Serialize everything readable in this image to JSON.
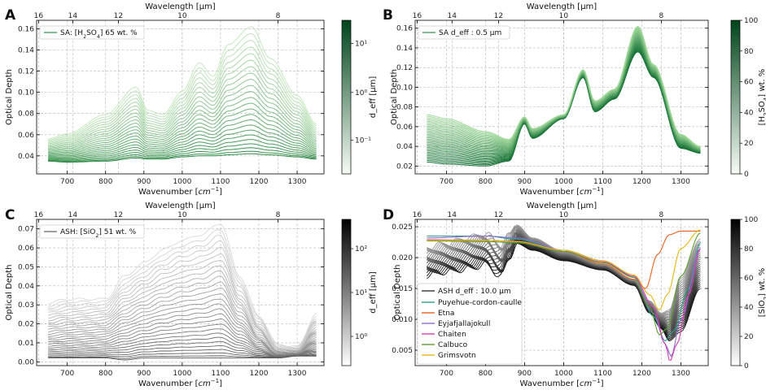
{
  "figure": {
    "description_labels": [
      "A",
      "B",
      "C",
      "D"
    ]
  },
  "chart_data": [
    {
      "panel": "A",
      "type": "line",
      "xlabel": "Wavenumber [cm⁻¹]",
      "ylabel": "Optical Depth",
      "top_xlabel": "Wavelength [μm]",
      "xlim": [
        620,
        1370
      ],
      "ylim": [
        0.023,
        0.168
      ],
      "xticks": [
        700,
        800,
        900,
        1000,
        1100,
        1200,
        1300
      ],
      "yticks": [
        0.04,
        0.06,
        0.08,
        0.1,
        0.12,
        0.14,
        0.16
      ],
      "yticklabels": [
        "0.04",
        "0.06",
        "0.08",
        "0.10",
        "0.12",
        "0.14",
        "0.16"
      ],
      "top_ticks": [
        16,
        14,
        12,
        10,
        8
      ],
      "legend": "SA: [H₂SO₄] 65 wt. %",
      "colorbar": {
        "label": "d_eff [μm]",
        "colors": [
          "#f7fcf5",
          "#00441b"
        ],
        "scale": "log",
        "ticks": [
          "10⁻¹",
          "10⁰",
          "10¹"
        ],
        "tick_fracs": [
          0.22,
          0.53,
          0.85
        ]
      },
      "series_count": 24,
      "key_points": {
        "x": [
          650,
          700,
          800,
          880,
          910,
          950,
          1000,
          1045,
          1080,
          1120,
          1180,
          1230,
          1300,
          1350
        ],
        "y_max": [
          0.056,
          0.061,
          0.079,
          0.105,
          0.083,
          0.079,
          0.101,
          0.128,
          0.115,
          0.145,
          0.162,
          0.132,
          0.097,
          0.07
        ],
        "y_min": [
          0.035,
          0.034,
          0.035,
          0.038,
          0.037,
          0.037,
          0.039,
          0.04,
          0.04,
          0.041,
          0.042,
          0.041,
          0.039,
          0.037
        ]
      }
    },
    {
      "panel": "B",
      "type": "line",
      "xlabel": "Wavenumber [cm⁻¹]",
      "ylabel": "Optical Depth",
      "top_xlabel": "Wavelength [μm]",
      "xlim": [
        620,
        1370
      ],
      "ylim": [
        0.012,
        0.168
      ],
      "xticks": [
        700,
        800,
        900,
        1000,
        1100,
        1200,
        1300
      ],
      "yticks": [
        0.02,
        0.04,
        0.06,
        0.08,
        0.1,
        0.12,
        0.14,
        0.16
      ],
      "yticklabels": [
        "0.02",
        "0.04",
        "0.06",
        "0.08",
        "0.10",
        "0.12",
        "0.14",
        "0.16"
      ],
      "top_ticks": [
        16,
        14,
        12,
        10,
        8
      ],
      "legend": "SA d_eff : 0.5 μm",
      "colorbar": {
        "label": "[H₂SO₄] wt. %",
        "colors": [
          "#f7fcf5",
          "#00441b"
        ],
        "scale": "linear",
        "ticks": [
          "0",
          "20",
          "40",
          "60",
          "80",
          "100"
        ],
        "tick_fracs": [
          0,
          0.2,
          0.4,
          0.6,
          0.8,
          1.0
        ]
      },
      "series_count": 30,
      "key_points": {
        "x": [
          650,
          700,
          800,
          860,
          900,
          920,
          1000,
          1050,
          1080,
          1130,
          1190,
          1230,
          1300,
          1350
        ],
        "y_top": [
          0.072,
          0.068,
          0.055,
          0.047,
          0.07,
          0.058,
          0.072,
          0.118,
          0.086,
          0.098,
          0.162,
          0.123,
          0.052,
          0.04
        ],
        "y_bot": [
          0.024,
          0.022,
          0.02,
          0.025,
          0.063,
          0.048,
          0.068,
          0.11,
          0.075,
          0.088,
          0.136,
          0.11,
          0.038,
          0.033
        ]
      }
    },
    {
      "panel": "C",
      "type": "line",
      "xlabel": "Wavenumber [cm⁻¹]",
      "ylabel": "Optical Depth",
      "top_xlabel": "Wavelength [μm]",
      "xlim": [
        620,
        1370
      ],
      "ylim": [
        -0.002,
        0.075
      ],
      "xticks": [
        700,
        800,
        900,
        1000,
        1100,
        1200,
        1300
      ],
      "yticks": [
        0.0,
        0.01,
        0.02,
        0.03,
        0.04,
        0.05,
        0.06,
        0.07
      ],
      "yticklabels": [
        "0.00",
        "0.01",
        "0.02",
        "0.03",
        "0.04",
        "0.05",
        "0.06",
        "0.07"
      ],
      "top_ticks": [
        16,
        14,
        12,
        10,
        8
      ],
      "legend": "ASH: [SiO₂] 51 wt. %",
      "colorbar": {
        "label": "d_eff [μm]",
        "colors": [
          "#ffffff",
          "#000000"
        ],
        "scale": "log",
        "ticks": [
          "10⁰",
          "10¹",
          "10²"
        ],
        "tick_fracs": [
          0.2,
          0.5,
          0.8
        ]
      },
      "series_count": 28,
      "key_points": {
        "x": [
          650,
          700,
          800,
          850,
          900,
          950,
          1000,
          1050,
          1100,
          1150,
          1200,
          1250,
          1300,
          1350
        ],
        "y_max": [
          0.031,
          0.033,
          0.033,
          0.045,
          0.052,
          0.059,
          0.064,
          0.067,
          0.073,
          0.045,
          0.024,
          0.009,
          0.008,
          0.025
        ],
        "y_min": [
          0.002,
          0.002,
          0.002,
          0.001,
          0.002,
          0.002,
          0.002,
          0.002,
          0.002,
          0.002,
          0.002,
          0.002,
          0.003,
          0.003
        ]
      }
    },
    {
      "panel": "D",
      "type": "line",
      "xlabel": "Wavenumber [cm⁻¹]",
      "ylabel": "Optical Depth",
      "top_xlabel": "Wavelength [μm]",
      "xlim": [
        620,
        1370
      ],
      "ylim": [
        0.0025,
        0.0262
      ],
      "xticks": [
        700,
        800,
        900,
        1000,
        1100,
        1200,
        1300
      ],
      "yticks": [
        0.005,
        0.01,
        0.015,
        0.02,
        0.025
      ],
      "yticklabels": [
        "0.005",
        "0.010",
        "0.015",
        "0.020",
        "0.025"
      ],
      "top_ticks": [
        16,
        14,
        12,
        10,
        8
      ],
      "legend_title": "ASH d_eff : 10.0 μm",
      "colorbar": {
        "label": "[SiO₂] wt. %",
        "colors": [
          "#ffffff",
          "#000000"
        ],
        "scale": "linear",
        "ticks": [
          "0",
          "20",
          "40",
          "60",
          "80",
          "100"
        ],
        "tick_fracs": [
          0,
          0.2,
          0.4,
          0.6,
          0.8,
          1.0
        ]
      },
      "ash_band": {
        "x": [
          650,
          700,
          760,
          800,
          840,
          860,
          880,
          920,
          1000,
          1100,
          1180,
          1220,
          1250,
          1270,
          1300,
          1350
        ],
        "y_top": [
          0.0215,
          0.0222,
          0.0232,
          0.0238,
          0.022,
          0.0235,
          0.0253,
          0.0232,
          0.021,
          0.019,
          0.0165,
          0.013,
          0.011,
          0.0115,
          0.017,
          0.023
        ],
        "y_bot": [
          0.0172,
          0.0178,
          0.0183,
          0.019,
          0.017,
          0.02,
          0.0223,
          0.0212,
          0.0195,
          0.018,
          0.0155,
          0.011,
          0.0085,
          0.0065,
          0.008,
          0.015
        ]
      },
      "series": [
        {
          "name": "Puyehue-cordon-caulle",
          "color": "#2ca089",
          "x": [
            650,
            800,
            880,
            1000,
            1100,
            1180,
            1230,
            1260,
            1280,
            1320,
            1350
          ],
          "y": [
            0.0235,
            0.0235,
            0.023,
            0.0212,
            0.0195,
            0.017,
            0.0105,
            0.0065,
            0.008,
            0.015,
            0.0225
          ]
        },
        {
          "name": "Etna",
          "color": "#e8601c",
          "x": [
            650,
            800,
            880,
            1000,
            1100,
            1180,
            1210,
            1240,
            1270,
            1300,
            1350
          ],
          "y": [
            0.0228,
            0.0228,
            0.0226,
            0.021,
            0.019,
            0.0165,
            0.015,
            0.0205,
            0.0237,
            0.0243,
            0.0243
          ]
        },
        {
          "name": "Eyjafjallajokull",
          "color": "#8b6fd1",
          "x": [
            650,
            800,
            880,
            1000,
            1100,
            1180,
            1230,
            1260,
            1275,
            1300,
            1350
          ],
          "y": [
            0.0232,
            0.0235,
            0.0232,
            0.0212,
            0.0195,
            0.0168,
            0.011,
            0.006,
            0.004,
            0.01,
            0.0215
          ]
        },
        {
          "name": "Chaiten",
          "color": "#d63fb3",
          "x": [
            650,
            800,
            880,
            1000,
            1100,
            1180,
            1230,
            1260,
            1272,
            1290,
            1320,
            1350
          ],
          "y": [
            0.0229,
            0.0228,
            0.0226,
            0.021,
            0.0193,
            0.017,
            0.012,
            0.006,
            0.0032,
            0.006,
            0.014,
            0.0215
          ]
        },
        {
          "name": "Calbuco",
          "color": "#5aa02c",
          "x": [
            650,
            800,
            880,
            1000,
            1100,
            1180,
            1220,
            1245,
            1265,
            1300,
            1350
          ],
          "y": [
            0.0227,
            0.0226,
            0.0224,
            0.021,
            0.0192,
            0.0168,
            0.012,
            0.0075,
            0.0085,
            0.017,
            0.024
          ]
        },
        {
          "name": "Grimsvotn",
          "color": "#e8b60e",
          "x": [
            650,
            800,
            880,
            1000,
            1100,
            1180,
            1220,
            1245,
            1265,
            1300,
            1350
          ],
          "y": [
            0.0228,
            0.0228,
            0.0226,
            0.0212,
            0.0195,
            0.0172,
            0.014,
            0.0115,
            0.014,
            0.0215,
            0.0245
          ]
        }
      ]
    }
  ]
}
